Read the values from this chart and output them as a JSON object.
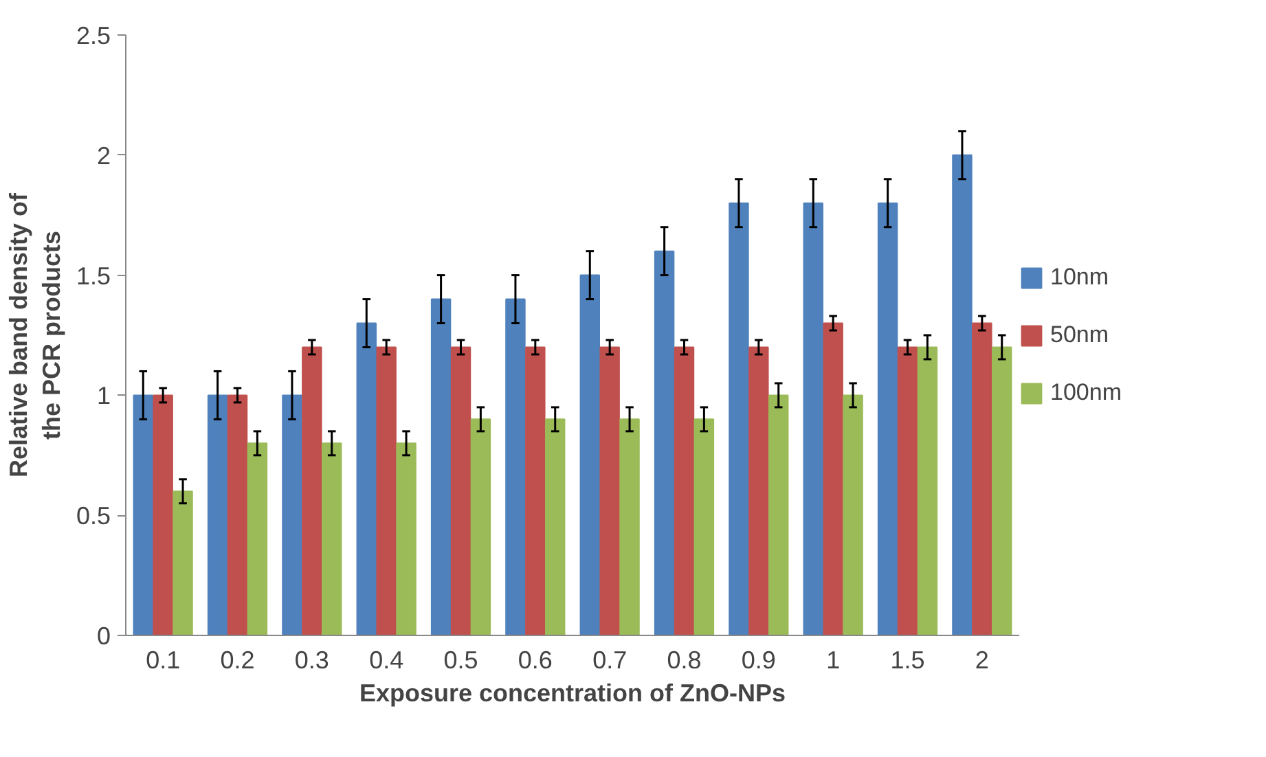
{
  "chart_data": {
    "type": "bar",
    "xlabel": "Exposure concentration of ZnO-NPs",
    "ylabel": "Relative band density of the PCR products",
    "categories": [
      "0.1",
      "0.2",
      "0.3",
      "0.4",
      "0.5",
      "0.6",
      "0.7",
      "0.8",
      "0.9",
      "1",
      "1.5",
      "2"
    ],
    "series": [
      {
        "name": "10nm",
        "color": "#4f81bd",
        "values": [
          1,
          1,
          1,
          1.3,
          1.4,
          1.4,
          1.5,
          1.6,
          1.8,
          1.8,
          1.8,
          2.0
        ],
        "errors": [
          0.1,
          0.1,
          0.1,
          0.1,
          0.1,
          0.1,
          0.1,
          0.1,
          0.1,
          0.1,
          0.1,
          0.1
        ]
      },
      {
        "name": "50nm",
        "color": "#c0504d",
        "values": [
          1,
          1,
          1.2,
          1.2,
          1.2,
          1.2,
          1.2,
          1.2,
          1.2,
          1.3,
          1.2,
          1.3
        ],
        "errors": [
          0.03,
          0.03,
          0.03,
          0.03,
          0.03,
          0.03,
          0.03,
          0.03,
          0.03,
          0.03,
          0.03,
          0.03
        ]
      },
      {
        "name": "100nm",
        "color": "#9bbb59",
        "values": [
          0.6,
          0.8,
          0.8,
          0.8,
          0.9,
          0.9,
          0.9,
          0.9,
          1.0,
          1.0,
          1.2,
          1.2
        ],
        "errors": [
          0.05,
          0.05,
          0.05,
          0.05,
          0.05,
          0.05,
          0.05,
          0.05,
          0.05,
          0.05,
          0.05,
          0.05
        ]
      }
    ],
    "ylim": [
      0,
      2.5
    ],
    "yticks": [
      0,
      0.5,
      1,
      1.5,
      2,
      2.5
    ],
    "grid": false,
    "legend": "right"
  }
}
